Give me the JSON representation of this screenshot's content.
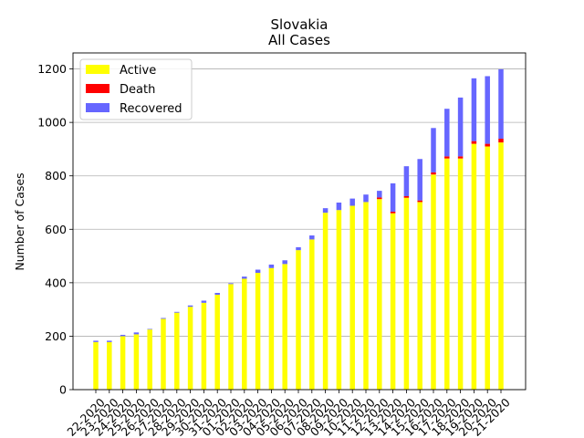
{
  "chart_data": {
    "type": "bar",
    "stacked": true,
    "title": "Slovakia",
    "subtitle": "All Cases",
    "xlabel": "",
    "ylabel": "Number of Cases",
    "ylim": [
      0,
      1260
    ],
    "yticks": [
      0,
      200,
      400,
      600,
      800,
      1000,
      1200
    ],
    "grid": "y",
    "legend_position": "top-left",
    "categories": [
      "22-2020",
      "23-2020",
      "24-2020",
      "25-2020",
      "26-2020",
      "27-2020",
      "28-2020",
      "29-2020",
      "30-2020",
      "31-2020",
      "01-2020",
      "02-2020",
      "03-2020",
      "04-2020",
      "05-2020",
      "06-2020",
      "07-2020",
      "08-2020",
      "09-2020",
      "10-2020",
      "11-2020",
      "12-2020",
      "13-2020",
      "14-2020",
      "15-2020",
      "16-2020",
      "17-2020",
      "18-2020",
      "19-2020",
      "20-2020",
      "21-2020"
    ],
    "series": [
      {
        "name": "Active",
        "color": "#ffff00",
        "values": [
          178,
          178,
          200,
          207,
          225,
          265,
          288,
          310,
          325,
          355,
          395,
          415,
          437,
          455,
          470,
          522,
          562,
          662,
          672,
          688,
          702,
          713,
          660,
          718,
          702,
          805,
          865,
          865,
          920,
          910,
          925
        ]
      },
      {
        "name": "Death",
        "color": "#ff0000",
        "values": [
          0,
          0,
          0,
          0,
          0,
          0,
          0,
          0,
          0,
          0,
          0,
          0,
          0,
          0,
          0,
          0,
          0,
          0,
          0,
          0,
          0,
          6,
          6,
          6,
          6,
          8,
          8,
          8,
          10,
          10,
          14
        ]
      },
      {
        "name": "Recovered",
        "color": "#6666ff",
        "values": [
          5,
          5,
          5,
          7,
          2,
          3,
          3,
          5,
          8,
          7,
          3,
          8,
          12,
          13,
          14,
          11,
          15,
          17,
          28,
          27,
          28,
          25,
          106,
          112,
          155,
          166,
          178,
          220,
          235,
          253,
          260
        ]
      }
    ]
  }
}
